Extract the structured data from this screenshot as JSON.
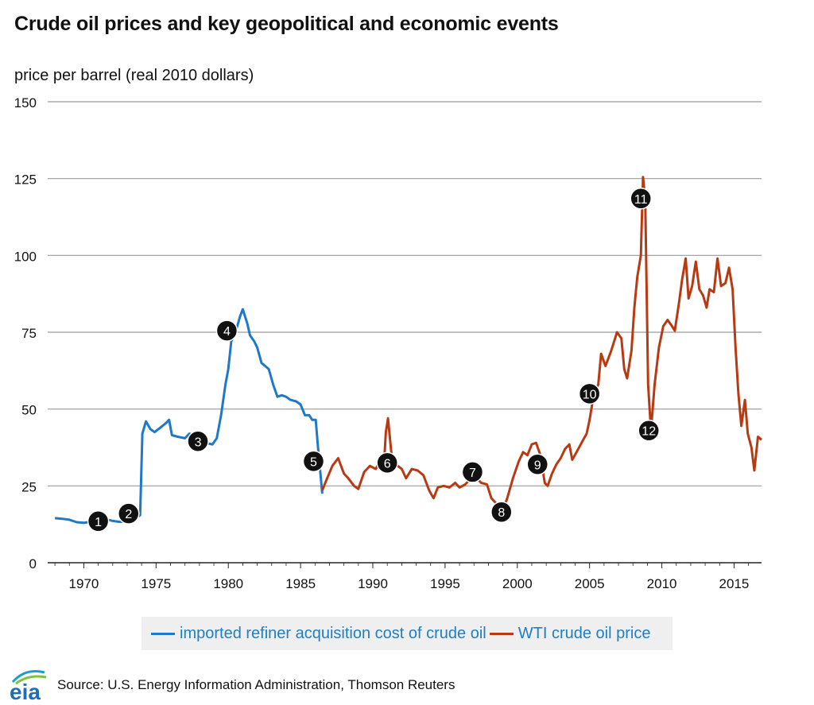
{
  "chart_data": {
    "type": "line",
    "title": "Crude oil prices and key geopolitical and economic events",
    "ylabel": "price per barrel (real 2010 dollars)",
    "xlim": [
      1967.5,
      2016.9
    ],
    "ylim": [
      0,
      150
    ],
    "yticks": [
      0,
      25,
      50,
      75,
      100,
      125,
      150
    ],
    "xticks": [
      1970,
      1975,
      1980,
      1985,
      1990,
      1995,
      2000,
      2005,
      2010,
      2015
    ],
    "grid": true,
    "legend_position": "bottom",
    "series": [
      {
        "name": "imported refiner acquisition cost of crude oil",
        "color": "#1f78c8",
        "points": [
          [
            1968,
            14.5
          ],
          [
            1968.5,
            14.3
          ],
          [
            1969,
            14
          ],
          [
            1969.5,
            13.2
          ],
          [
            1970,
            13
          ],
          [
            1970.5,
            13.3
          ],
          [
            1971,
            13.8
          ],
          [
            1971.5,
            14.2
          ],
          [
            1972,
            13.6
          ],
          [
            1972.5,
            13.3
          ],
          [
            1973,
            13.5
          ],
          [
            1973.5,
            14
          ],
          [
            1973.9,
            15.5
          ],
          [
            1974.05,
            42
          ],
          [
            1974.3,
            46
          ],
          [
            1974.6,
            43.5
          ],
          [
            1974.9,
            42.5
          ],
          [
            1975.3,
            44
          ],
          [
            1975.7,
            45.5
          ],
          [
            1975.9,
            46.5
          ],
          [
            1976.1,
            41.5
          ],
          [
            1976.5,
            41
          ],
          [
            1977,
            40.5
          ],
          [
            1977.3,
            42
          ],
          [
            1977.7,
            41.5
          ],
          [
            1978,
            40.5
          ],
          [
            1978.4,
            39
          ],
          [
            1978.9,
            38.5
          ],
          [
            1979.2,
            40.5
          ],
          [
            1979.5,
            48
          ],
          [
            1979.8,
            58
          ],
          [
            1980,
            63
          ],
          [
            1980.2,
            72
          ],
          [
            1980.5,
            75
          ],
          [
            1980.8,
            80
          ],
          [
            1981,
            82.5
          ],
          [
            1981.3,
            78
          ],
          [
            1981.5,
            74
          ],
          [
            1981.8,
            72
          ],
          [
            1982,
            70
          ],
          [
            1982.3,
            65
          ],
          [
            1982.8,
            63
          ],
          [
            1983.1,
            58
          ],
          [
            1983.4,
            54
          ],
          [
            1983.7,
            54.5
          ],
          [
            1984,
            54
          ],
          [
            1984.3,
            53
          ],
          [
            1984.7,
            52.5
          ],
          [
            1985,
            51.5
          ],
          [
            1985.3,
            48
          ],
          [
            1985.6,
            48
          ],
          [
            1985.8,
            46.5
          ],
          [
            1986.05,
            46.5
          ],
          [
            1986.2,
            38
          ],
          [
            1986.5,
            22.5
          ]
        ]
      },
      {
        "name": "WTI crude oil price",
        "color": "#b83a13",
        "points": [
          [
            1986.5,
            23.5
          ],
          [
            1986.8,
            27
          ],
          [
            1987.2,
            31.5
          ],
          [
            1987.6,
            34
          ],
          [
            1988,
            29
          ],
          [
            1988.3,
            27.5
          ],
          [
            1988.7,
            25
          ],
          [
            1989,
            24
          ],
          [
            1989.4,
            29.5
          ],
          [
            1989.8,
            31.5
          ],
          [
            1990.2,
            30.5
          ],
          [
            1990.5,
            33
          ],
          [
            1990.75,
            30
          ],
          [
            1990.9,
            42.5
          ],
          [
            1991.05,
            47
          ],
          [
            1991.3,
            35
          ],
          [
            1991.6,
            32
          ],
          [
            1992,
            30.5
          ],
          [
            1992.3,
            27.5
          ],
          [
            1992.7,
            30.5
          ],
          [
            1993.1,
            30
          ],
          [
            1993.5,
            28.5
          ],
          [
            1993.9,
            23.5
          ],
          [
            1994.2,
            21
          ],
          [
            1994.5,
            24.5
          ],
          [
            1994.9,
            25
          ],
          [
            1995.3,
            24.5
          ],
          [
            1995.7,
            26
          ],
          [
            1996,
            24.5
          ],
          [
            1996.4,
            25.5
          ],
          [
            1996.8,
            27.5
          ],
          [
            1997.1,
            28
          ],
          [
            1997.5,
            26
          ],
          [
            1997.9,
            25.5
          ],
          [
            1998.2,
            21
          ],
          [
            1998.6,
            19
          ],
          [
            1998.95,
            16.5
          ],
          [
            1999.3,
            21
          ],
          [
            1999.7,
            27.5
          ],
          [
            2000.1,
            33
          ],
          [
            2000.4,
            36
          ],
          [
            2000.7,
            35
          ],
          [
            2001,
            38.5
          ],
          [
            2001.3,
            39
          ],
          [
            2001.6,
            35
          ],
          [
            2001.9,
            26
          ],
          [
            2002.1,
            25
          ],
          [
            2002.4,
            29
          ],
          [
            2002.7,
            32
          ],
          [
            2003,
            34
          ],
          [
            2003.3,
            37
          ],
          [
            2003.6,
            38.5
          ],
          [
            2003.8,
            33.5
          ],
          [
            2004.1,
            36
          ],
          [
            2004.5,
            39.5
          ],
          [
            2004.8,
            42
          ],
          [
            2005,
            46.5
          ],
          [
            2005.3,
            55
          ],
          [
            2005.6,
            58
          ],
          [
            2005.8,
            68
          ],
          [
            2006.1,
            64
          ],
          [
            2006.5,
            69
          ],
          [
            2006.9,
            75
          ],
          [
            2007.2,
            73
          ],
          [
            2007.4,
            63
          ],
          [
            2007.6,
            60
          ],
          [
            2007.9,
            69
          ],
          [
            2008.1,
            83
          ],
          [
            2008.3,
            93
          ],
          [
            2008.55,
            100
          ],
          [
            2008.7,
            125.5
          ],
          [
            2008.85,
            118
          ],
          [
            2009.05,
            58
          ],
          [
            2009.25,
            43
          ],
          [
            2009.5,
            58
          ],
          [
            2009.8,
            70
          ],
          [
            2010.1,
            77
          ],
          [
            2010.4,
            79
          ],
          [
            2010.7,
            77
          ],
          [
            2010.9,
            75.5
          ],
          [
            2011.2,
            85
          ],
          [
            2011.4,
            92
          ],
          [
            2011.65,
            99
          ],
          [
            2011.85,
            86
          ],
          [
            2012.1,
            90
          ],
          [
            2012.35,
            98
          ],
          [
            2012.6,
            89
          ],
          [
            2012.85,
            87
          ],
          [
            2013.1,
            83
          ],
          [
            2013.3,
            89
          ],
          [
            2013.6,
            88
          ],
          [
            2013.85,
            99
          ],
          [
            2014.1,
            90
          ],
          [
            2014.4,
            91
          ],
          [
            2014.65,
            96
          ],
          [
            2014.9,
            89
          ],
          [
            2015.1,
            70
          ],
          [
            2015.3,
            55
          ],
          [
            2015.5,
            44.5
          ],
          [
            2015.75,
            53
          ],
          [
            2015.95,
            42
          ],
          [
            2016.2,
            37.5
          ],
          [
            2016.4,
            30
          ],
          [
            2016.65,
            41
          ],
          [
            2016.9,
            40
          ]
        ]
      }
    ],
    "annotations": [
      {
        "label": "1",
        "x": 1971,
        "y": 13.5
      },
      {
        "label": "2",
        "x": 1973.1,
        "y": 16
      },
      {
        "label": "3",
        "x": 1977.9,
        "y": 39.5
      },
      {
        "label": "4",
        "x": 1979.9,
        "y": 75.5
      },
      {
        "label": "5",
        "x": 1985.9,
        "y": 33
      },
      {
        "label": "6",
        "x": 1991,
        "y": 32.5
      },
      {
        "label": "7",
        "x": 1996.9,
        "y": 29.5
      },
      {
        "label": "8",
        "x": 1998.9,
        "y": 16.5
      },
      {
        "label": "9",
        "x": 2001.4,
        "y": 32
      },
      {
        "label": "10",
        "x": 2005,
        "y": 55
      },
      {
        "label": "11",
        "x": 2008.55,
        "y": 118.5
      },
      {
        "label": "12",
        "x": 2009.1,
        "y": 43
      }
    ]
  },
  "legend": {
    "item1": "imported refiner acquisition cost of crude oil",
    "item2": "WTI crude oil price"
  },
  "source": "Source: U.S. Energy Information Administration, Thomson Reuters",
  "logo": {
    "text": "eia",
    "colors": [
      "#1f9ad6",
      "#7fc241",
      "#1f6db4"
    ]
  }
}
